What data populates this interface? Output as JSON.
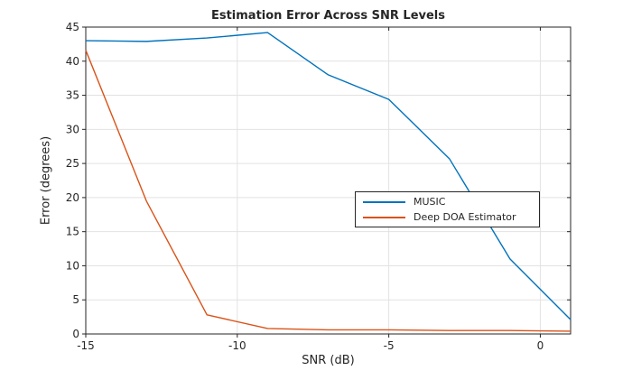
{
  "figure": {
    "title": "Estimation Error Across SNR Levels"
  },
  "colors": {
    "axis": "#262626",
    "text": "#262626",
    "grid": "#e2e2e2",
    "background": "#ffffff",
    "legend_border": "#262626",
    "series_blue": "#0072BD",
    "series_orange": "#D95319"
  },
  "chart_data": {
    "type": "line",
    "title": "Estimation Error Across SNR Levels",
    "xlabel": "SNR (dB)",
    "ylabel": "Error (degrees)",
    "x": [
      -15,
      -13,
      -11,
      -9,
      -7,
      -5,
      -3,
      -1,
      1
    ],
    "series": [
      {
        "name": "MUSIC",
        "color": "#0072BD",
        "values": [
          43.0,
          42.9,
          43.4,
          44.2,
          38.0,
          34.4,
          25.7,
          11.0,
          2.1
        ]
      },
      {
        "name": "Deep DOA Estimator",
        "color": "#D95319",
        "values": [
          41.6,
          19.5,
          2.8,
          0.8,
          0.6,
          0.6,
          0.5,
          0.5,
          0.4
        ]
      }
    ],
    "xlim": [
      -15,
      1
    ],
    "ylim": [
      0,
      45
    ],
    "x_ticks": [
      -15,
      -10,
      -5,
      0
    ],
    "y_ticks": [
      0,
      5,
      10,
      15,
      20,
      25,
      30,
      35,
      40,
      45
    ],
    "grid": true,
    "legend_position": "inside-middle-right"
  }
}
